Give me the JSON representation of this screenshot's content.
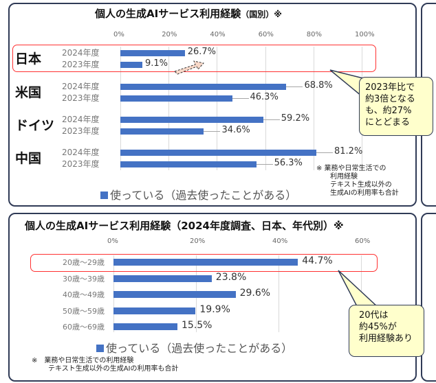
{
  "chart_data": [
    {
      "type": "bar",
      "title": "個人の生成AIサービス利用経験",
      "title_suffix": "（国別）※",
      "xlim": [
        0,
        100
      ],
      "ticks": [
        "0%",
        "20%",
        "40%",
        "60%",
        "80%",
        "100%"
      ],
      "groups": [
        {
          "name": "日本",
          "rows": [
            {
              "label": "2024年度",
              "value": 26.7,
              "text": "26.7%"
            },
            {
              "label": "2023年度",
              "value": 9.1,
              "text": "9.1%"
            }
          ]
        },
        {
          "name": "米国",
          "rows": [
            {
              "label": "2024年度",
              "value": 68.8,
              "text": "68.8%"
            },
            {
              "label": "2023年度",
              "value": 46.3,
              "text": "46.3%"
            }
          ]
        },
        {
          "name": "ドイツ",
          "rows": [
            {
              "label": "2024年度",
              "value": 59.2,
              "text": "59.2%"
            },
            {
              "label": "2023年度",
              "value": 34.6,
              "text": "34.6%"
            }
          ]
        },
        {
          "name": "中国",
          "rows": [
            {
              "label": "2024年度",
              "value": 81.2,
              "text": "81.2%"
            },
            {
              "label": "2023年度",
              "value": 56.3,
              "text": "56.3%"
            }
          ]
        }
      ],
      "legend": "使っている（過去使ったことがある）",
      "callout": [
        "2023年比で",
        "約3倍となる",
        "も、約27%",
        "にとどまる"
      ],
      "footnote": [
        "※ 業務や日常生活での",
        "利用経験",
        "テキスト生成以外の",
        "生成AIの利用率も合計"
      ],
      "bar_color": "#4472c4"
    },
    {
      "type": "bar",
      "title": "個人の生成AIサービス利用経験（2024年度調査、日本、年代別）※",
      "xlim": [
        0,
        60
      ],
      "ticks": [
        "0%",
        "20%",
        "40%",
        "60%"
      ],
      "categories": [
        "20歳～29歳",
        "30歳～39歳",
        "40歳～49歳",
        "50歳～59歳",
        "60歳～69歳"
      ],
      "values": [
        44.7,
        23.8,
        29.6,
        19.9,
        15.5
      ],
      "labels": [
        "44.7%",
        "23.8%",
        "29.6%",
        "19.9%",
        "15.5%"
      ],
      "legend": "使っている（過去使ったことがある）",
      "callout": [
        "20代は",
        "約45%が",
        "利用経験あり"
      ],
      "footnote": [
        "※　業務や日常生活での利用経験",
        "テキスト生成以外の生成AIの利用率も合計"
      ],
      "bar_color": "#4472c4"
    }
  ]
}
